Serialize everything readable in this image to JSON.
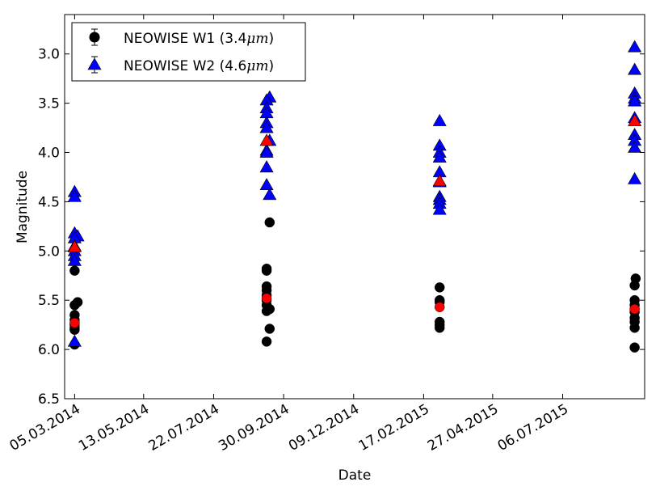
{
  "chart_data": {
    "type": "scatter",
    "title": "",
    "xlabel": "Date",
    "ylabel": "Magnitude",
    "xlim": [
      "2014-02-23",
      "2015-09-26"
    ],
    "ylim": [
      6.5,
      2.6
    ],
    "y_inverted": true,
    "grid": false,
    "legend_position": "top-left",
    "x_ticks": [
      "2014-03-05",
      "2014-05-13",
      "2014-07-22",
      "2014-09-30",
      "2014-12-09",
      "2015-02-17",
      "2015-04-27",
      "2015-07-06"
    ],
    "x_tick_labels": [
      "05.03.2014",
      "13.05.2014",
      "22.07.2014",
      "30.09.2014",
      "09.12.2014",
      "17.02.2015",
      "27.04.2015",
      "06.07.2015"
    ],
    "y_ticks": [
      3.0,
      3.5,
      4.0,
      4.5,
      5.0,
      5.5,
      6.0,
      6.5
    ],
    "y_tick_labels": [
      "3.0",
      "3.5",
      "4.0",
      "4.5",
      "5.0",
      "5.5",
      "6.0",
      "6.5"
    ],
    "series": [
      {
        "name": "NEOWISE W1",
        "label_prefix": "NEOWISE W1 (3.4",
        "label_unit": "μm",
        "label_suffix": ")",
        "marker": "circle",
        "color": "#000000",
        "points": [
          [
            "2014-03-05",
            5.2
          ],
          [
            "2014-03-08",
            5.52
          ],
          [
            "2014-03-05",
            5.55
          ],
          [
            "2014-03-05",
            5.65
          ],
          [
            "2014-03-05",
            5.7
          ],
          [
            "2014-03-05",
            5.75
          ],
          [
            "2014-03-05",
            5.78
          ],
          [
            "2014-03-05",
            5.8
          ],
          [
            "2014-03-05",
            5.95
          ],
          [
            "2014-09-16",
            4.71
          ],
          [
            "2014-09-13",
            5.18
          ],
          [
            "2014-09-13",
            5.2
          ],
          [
            "2014-09-13",
            5.36
          ],
          [
            "2014-09-13",
            5.4
          ],
          [
            "2014-09-13",
            5.45
          ],
          [
            "2014-09-13",
            5.5
          ],
          [
            "2014-09-13",
            5.55
          ],
          [
            "2014-09-16",
            5.59
          ],
          [
            "2014-09-13",
            5.61
          ],
          [
            "2014-09-16",
            5.79
          ],
          [
            "2014-09-13",
            5.92
          ],
          [
            "2015-03-05",
            5.37
          ],
          [
            "2015-03-05",
            5.5
          ],
          [
            "2015-03-05",
            5.52
          ],
          [
            "2015-03-05",
            5.72
          ],
          [
            "2015-03-05",
            5.75
          ],
          [
            "2015-03-05",
            5.78
          ],
          [
            "2015-09-17",
            5.28
          ],
          [
            "2015-09-16",
            5.35
          ],
          [
            "2015-09-16",
            5.5
          ],
          [
            "2015-09-16",
            5.55
          ],
          [
            "2015-09-16",
            5.62
          ],
          [
            "2015-09-16",
            5.68
          ],
          [
            "2015-09-16",
            5.72
          ],
          [
            "2015-09-16",
            5.78
          ],
          [
            "2015-09-16",
            5.98
          ]
        ],
        "mean_points": [
          [
            "2014-03-05",
            5.73
          ],
          [
            "2014-09-13",
            5.48
          ],
          [
            "2015-03-05",
            5.57
          ],
          [
            "2015-09-16",
            5.59
          ]
        ]
      },
      {
        "name": "NEOWISE W2",
        "label_prefix": "NEOWISE W2 (4.6",
        "label_unit": "μm",
        "label_suffix": ")",
        "marker": "triangle",
        "color": "#0000ff",
        "points": [
          [
            "2014-03-05",
            4.4
          ],
          [
            "2014-03-05",
            4.45
          ],
          [
            "2014-03-05",
            4.82
          ],
          [
            "2014-03-08",
            4.85
          ],
          [
            "2014-03-05",
            4.87
          ],
          [
            "2014-03-05",
            4.95
          ],
          [
            "2014-03-05",
            5.0
          ],
          [
            "2014-03-05",
            5.05
          ],
          [
            "2014-03-05",
            5.1
          ],
          [
            "2014-03-05",
            5.92
          ],
          [
            "2014-09-16",
            3.44
          ],
          [
            "2014-09-13",
            3.47
          ],
          [
            "2014-09-13",
            3.55
          ],
          [
            "2014-09-13",
            3.6
          ],
          [
            "2014-09-13",
            3.7
          ],
          [
            "2014-09-13",
            3.75
          ],
          [
            "2014-09-16",
            3.88
          ],
          [
            "2014-09-13",
            3.98
          ],
          [
            "2014-09-13",
            4.0
          ],
          [
            "2014-09-13",
            4.15
          ],
          [
            "2014-09-13",
            4.33
          ],
          [
            "2014-09-16",
            4.43
          ],
          [
            "2015-03-05",
            3.68
          ],
          [
            "2015-03-05",
            3.93
          ],
          [
            "2015-03-05",
            4.0
          ],
          [
            "2015-03-05",
            4.05
          ],
          [
            "2015-03-05",
            4.2
          ],
          [
            "2015-03-05",
            4.3
          ],
          [
            "2015-03-05",
            4.45
          ],
          [
            "2015-03-05",
            4.48
          ],
          [
            "2015-03-05",
            4.52
          ],
          [
            "2015-03-05",
            4.58
          ],
          [
            "2015-09-16",
            2.93
          ],
          [
            "2015-09-16",
            3.16
          ],
          [
            "2015-09-16",
            3.4
          ],
          [
            "2015-09-16",
            3.45
          ],
          [
            "2015-09-16",
            3.48
          ],
          [
            "2015-09-16",
            3.65
          ],
          [
            "2015-09-16",
            3.82
          ],
          [
            "2015-09-16",
            3.88
          ],
          [
            "2015-09-16",
            3.95
          ],
          [
            "2015-09-16",
            4.27
          ]
        ],
        "mean_points": [
          [
            "2014-03-05",
            4.96
          ],
          [
            "2014-09-13",
            3.88
          ],
          [
            "2015-03-05",
            4.29
          ],
          [
            "2015-09-16",
            3.68
          ]
        ]
      }
    ],
    "mean_color": "#ff0000"
  }
}
